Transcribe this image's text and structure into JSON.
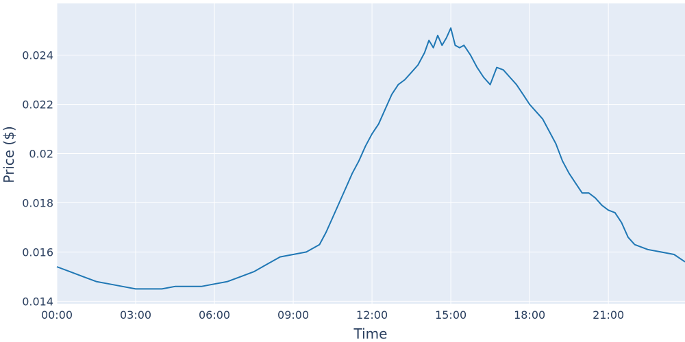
{
  "colors": {
    "plot_background": "#E5ECF6",
    "grid": "#ffffff",
    "line": "#1f77b4",
    "text": "#2a3f5f"
  },
  "chart_data": {
    "type": "line",
    "title": "",
    "xlabel": "Time",
    "ylabel": "Price ($)",
    "x_unit": "hours of day",
    "xlim": [
      "00:00",
      "23:55"
    ],
    "ylim": [
      0.0139,
      0.0261
    ],
    "x_ticks": [
      "00:00",
      "03:00",
      "06:00",
      "09:00",
      "12:00",
      "15:00",
      "18:00",
      "21:00"
    ],
    "y_ticks": [
      "0.014",
      "0.016",
      "0.018",
      "0.02",
      "0.022",
      "0.024"
    ],
    "grid": true,
    "legend": "none",
    "series": [
      {
        "x": [
          "00:00",
          "00:30",
          "01:00",
          "01:30",
          "02:00",
          "02:30",
          "03:00",
          "03:30",
          "04:00",
          "04:30",
          "05:00",
          "05:30",
          "06:00",
          "06:30",
          "07:00",
          "07:30",
          "08:00",
          "08:30",
          "09:00",
          "09:30",
          "10:00",
          "10:15",
          "10:30",
          "10:45",
          "11:00",
          "11:15",
          "11:30",
          "11:45",
          "12:00",
          "12:15",
          "12:30",
          "12:45",
          "13:00",
          "13:15",
          "13:30",
          "13:45",
          "14:00",
          "14:10",
          "14:20",
          "14:30",
          "14:40",
          "14:50",
          "15:00",
          "15:10",
          "15:20",
          "15:30",
          "15:45",
          "16:00",
          "16:15",
          "16:30",
          "16:45",
          "17:00",
          "17:15",
          "17:30",
          "17:45",
          "18:00",
          "18:15",
          "18:30",
          "18:45",
          "19:00",
          "19:15",
          "19:30",
          "19:45",
          "20:00",
          "20:15",
          "20:30",
          "20:45",
          "21:00",
          "21:15",
          "21:30",
          "21:45",
          "22:00",
          "22:15",
          "22:30",
          "23:00",
          "23:30",
          "23:55"
        ],
        "values": [
          0.0154,
          0.0152,
          0.015,
          0.0148,
          0.0147,
          0.0146,
          0.0145,
          0.0145,
          0.0145,
          0.0146,
          0.0146,
          0.0146,
          0.0147,
          0.0148,
          0.015,
          0.0152,
          0.0155,
          0.0158,
          0.0159,
          0.016,
          0.0163,
          0.0168,
          0.0174,
          0.018,
          0.0186,
          0.0192,
          0.0197,
          0.0203,
          0.0208,
          0.0212,
          0.0218,
          0.0224,
          0.0228,
          0.023,
          0.0233,
          0.0236,
          0.0241,
          0.0246,
          0.0243,
          0.0248,
          0.0244,
          0.0247,
          0.0251,
          0.0244,
          0.0243,
          0.0244,
          0.024,
          0.0235,
          0.0231,
          0.0228,
          0.0235,
          0.0234,
          0.0231,
          0.0228,
          0.0224,
          0.022,
          0.0217,
          0.0214,
          0.0209,
          0.0204,
          0.0197,
          0.0192,
          0.0188,
          0.0184,
          0.0184,
          0.0182,
          0.0179,
          0.0177,
          0.0176,
          0.0172,
          0.0166,
          0.0163,
          0.0162,
          0.0161,
          0.016,
          0.0159,
          0.0156
        ]
      }
    ]
  }
}
